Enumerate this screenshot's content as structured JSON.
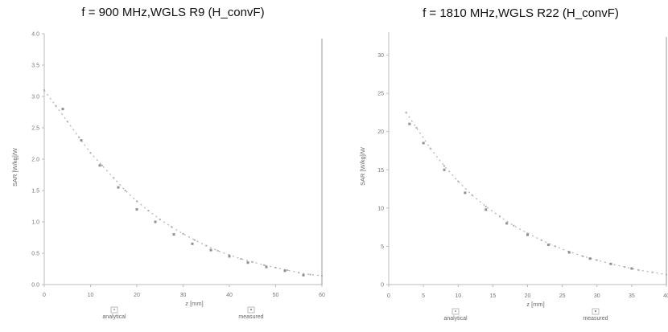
{
  "chart_data": [
    {
      "type": "scatter",
      "title": "f = 900 MHz,WGLS R9 (H_convF)",
      "xlabel": "z [mm]",
      "ylabel": "SAR [W/kg]/W",
      "xlim": [
        0,
        60
      ],
      "ylim": [
        0,
        4.0
      ],
      "x_ticks": [
        "0",
        "10",
        "20",
        "30",
        "40",
        "50",
        "60"
      ],
      "y_ticks": [
        "0.0",
        "0.5",
        "1.0",
        "1.5",
        "2.0",
        "2.5",
        "3.0",
        "3.5",
        "4.0"
      ],
      "grid": false,
      "legend_position": "bottom",
      "series": [
        {
          "name": "analytical",
          "color": "#b0b0b0",
          "x": [
            0,
            2.5,
            5,
            7.5,
            10,
            12.5,
            15,
            17.5,
            20,
            22.5,
            25,
            27.5,
            30,
            32.5,
            35,
            37.5,
            40,
            42.5,
            45,
            47.5,
            50,
            52.5,
            55,
            57.5,
            60
          ],
          "y": [
            3.1,
            2.85,
            2.6,
            2.35,
            2.1,
            1.9,
            1.7,
            1.5,
            1.33,
            1.18,
            1.04,
            0.92,
            0.81,
            0.71,
            0.62,
            0.54,
            0.47,
            0.41,
            0.36,
            0.31,
            0.27,
            0.23,
            0.19,
            0.16,
            0.14
          ]
        },
        {
          "name": "measured",
          "color": "#909090",
          "x": [
            4,
            8,
            12,
            16,
            20,
            24,
            28,
            32,
            36,
            40,
            44,
            48,
            52,
            56
          ],
          "y": [
            2.8,
            2.3,
            1.9,
            1.55,
            1.2,
            1.0,
            0.8,
            0.65,
            0.55,
            0.45,
            0.35,
            0.28,
            0.22,
            0.15
          ]
        }
      ]
    },
    {
      "type": "scatter",
      "title": "f = 1810 MHz,WGLS R22 (H_convF)",
      "xlabel": "z [mm]",
      "ylabel": "SAR [W/kg]/W",
      "xlim": [
        0,
        40
      ],
      "ylim": [
        0,
        33
      ],
      "x_ticks": [
        "0",
        "5",
        "10",
        "15",
        "20",
        "25",
        "30",
        "35",
        "40"
      ],
      "y_ticks": [
        "0",
        "5",
        "10",
        "15",
        "20",
        "25",
        "30"
      ],
      "grid": false,
      "legend_position": "bottom",
      "series": [
        {
          "name": "analytical",
          "color": "#b0b0b0",
          "x": [
            2.5,
            4,
            6,
            8,
            10,
            12,
            14,
            16,
            18,
            20,
            22,
            24,
            26,
            28,
            30,
            32,
            34,
            36,
            38,
            40
          ],
          "y": [
            22.5,
            20.5,
            17.8,
            15.5,
            13.5,
            11.7,
            10.2,
            8.9,
            7.7,
            6.7,
            5.8,
            5.0,
            4.3,
            3.7,
            3.2,
            2.7,
            2.3,
            1.9,
            1.6,
            1.3
          ]
        },
        {
          "name": "measured",
          "color": "#909090",
          "x": [
            3,
            5,
            8,
            11,
            14,
            17,
            20,
            23,
            26,
            29,
            32,
            35
          ],
          "y": [
            21.0,
            18.5,
            15.0,
            12.0,
            9.8,
            8.0,
            6.5,
            5.2,
            4.2,
            3.4,
            2.7,
            2.1
          ]
        }
      ]
    }
  ]
}
